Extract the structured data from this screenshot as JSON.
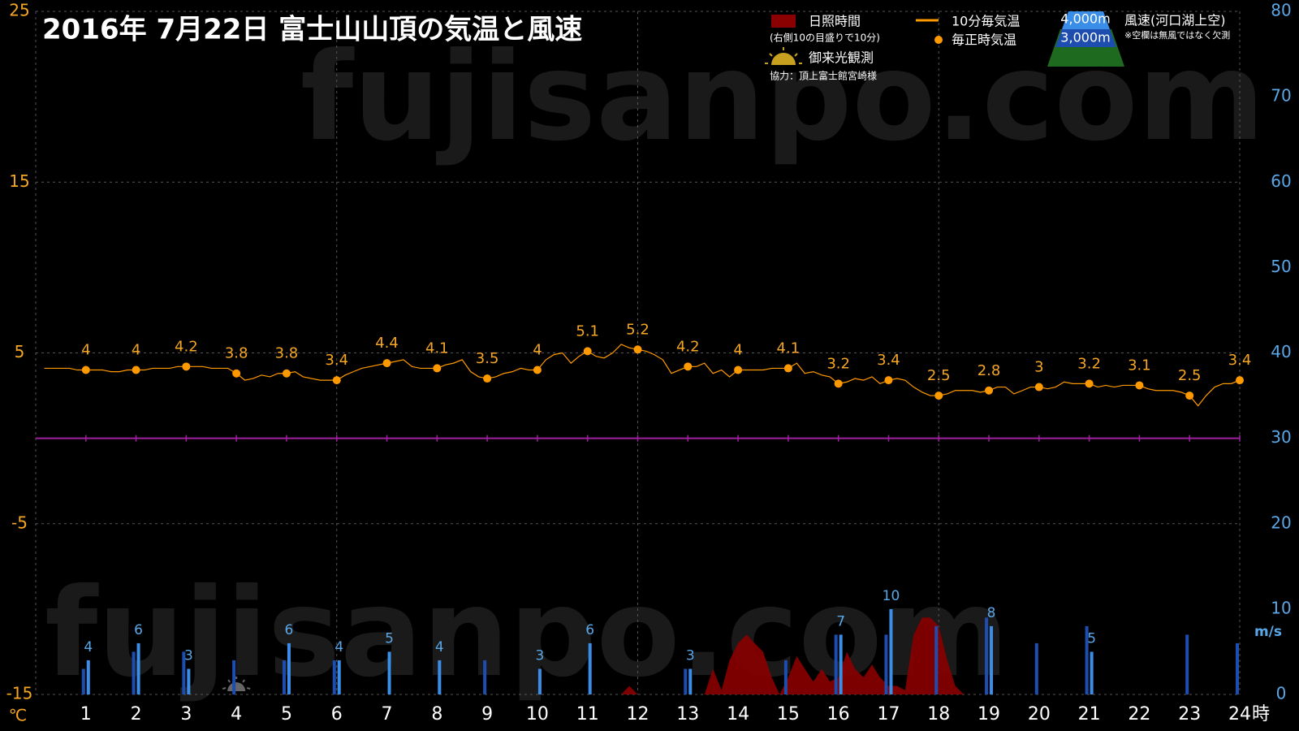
{
  "chart_data": {
    "type": "line",
    "title": "2016年  7月22日   富士山山頂の気温と風速",
    "xlim": [
      0,
      24
    ],
    "hours": [
      1,
      2,
      3,
      4,
      5,
      6,
      7,
      8,
      9,
      10,
      11,
      12,
      13,
      14,
      15,
      16,
      17,
      18,
      19,
      20,
      21,
      22,
      23,
      24
    ],
    "xlabel": "時",
    "ylim": [
      -15,
      25
    ],
    "yticks": [
      -15,
      -5,
      5,
      15,
      25
    ],
    "ylabel": "℃",
    "y2lim": [
      0,
      80
    ],
    "y2ticks": [
      0,
      10,
      20,
      30,
      40,
      50,
      60,
      70,
      80
    ],
    "y2label": "m/s",
    "grid": true,
    "zero_line_color": "#a020a0",
    "series": [
      {
        "name": "10分毎気温",
        "type": "line",
        "color": "#ff9900",
        "x": [
          0.17,
          0.33,
          0.5,
          0.67,
          0.83,
          1,
          1.17,
          1.33,
          1.5,
          1.67,
          1.83,
          2,
          2.17,
          2.33,
          2.5,
          2.67,
          2.83,
          3,
          3.17,
          3.33,
          3.5,
          3.67,
          3.83,
          4,
          4.17,
          4.33,
          4.5,
          4.67,
          4.83,
          5,
          5.17,
          5.33,
          5.5,
          5.67,
          5.83,
          6,
          6.17,
          6.33,
          6.5,
          6.67,
          6.83,
          7,
          7.17,
          7.33,
          7.5,
          7.67,
          7.83,
          8,
          8.17,
          8.33,
          8.5,
          8.67,
          8.83,
          9,
          9.17,
          9.33,
          9.5,
          9.67,
          9.83,
          10,
          10.17,
          10.33,
          10.5,
          10.67,
          10.83,
          11,
          11.17,
          11.33,
          11.5,
          11.67,
          11.83,
          12,
          12.17,
          12.33,
          12.5,
          12.67,
          12.83,
          13,
          13.17,
          13.33,
          13.5,
          13.67,
          13.83,
          14,
          14.17,
          14.33,
          14.5,
          14.67,
          14.83,
          15,
          15.17,
          15.33,
          15.5,
          15.67,
          15.83,
          16,
          16.17,
          16.33,
          16.5,
          16.67,
          16.83,
          17,
          17.17,
          17.33,
          17.5,
          17.67,
          17.83,
          18,
          18.17,
          18.33,
          18.5,
          18.67,
          18.83,
          19,
          19.17,
          19.33,
          19.5,
          19.67,
          19.83,
          20,
          20.17,
          20.33,
          20.5,
          20.67,
          20.83,
          21,
          21.17,
          21.33,
          21.5,
          21.67,
          21.83,
          22,
          22.17,
          22.33,
          22.5,
          22.67,
          22.83,
          23,
          23.17,
          23.33,
          23.5,
          23.67,
          23.83,
          24
        ],
        "values": [
          4.1,
          4.1,
          4.1,
          4.1,
          4.0,
          4.0,
          4.0,
          4.0,
          3.9,
          3.9,
          4.0,
          4.0,
          4.0,
          4.1,
          4.1,
          4.1,
          4.2,
          4.2,
          4.2,
          4.2,
          4.1,
          4.1,
          4.1,
          3.8,
          3.4,
          3.5,
          3.7,
          3.6,
          3.8,
          3.8,
          3.9,
          3.6,
          3.5,
          3.4,
          3.4,
          3.4,
          3.7,
          3.9,
          4.1,
          4.2,
          4.3,
          4.4,
          4.5,
          4.6,
          4.2,
          4.1,
          4.1,
          4.1,
          4.3,
          4.4,
          4.6,
          3.9,
          3.6,
          3.5,
          3.6,
          3.8,
          3.9,
          4.1,
          4.0,
          4.0,
          4.6,
          4.9,
          5.0,
          4.4,
          4.8,
          5.1,
          4.8,
          4.7,
          5.0,
          5.5,
          5.3,
          5.2,
          5.1,
          4.9,
          4.6,
          3.8,
          4.0,
          4.2,
          4.2,
          4.4,
          3.8,
          4.0,
          3.6,
          4.0,
          4.0,
          4.0,
          4.0,
          4.1,
          4.1,
          4.1,
          4.4,
          3.8,
          3.9,
          3.7,
          3.6,
          3.2,
          3.3,
          3.5,
          3.4,
          3.6,
          3.2,
          3.4,
          3.5,
          3.4,
          3.0,
          2.7,
          2.5,
          2.5,
          2.6,
          2.8,
          2.8,
          2.8,
          2.7,
          2.8,
          3.0,
          3.0,
          2.6,
          2.8,
          3.0,
          3.0,
          2.9,
          3.0,
          3.3,
          3.2,
          3.2,
          3.2,
          3.0,
          3.1,
          3.0,
          3.1,
          3.1,
          3.1,
          2.9,
          2.8,
          2.8,
          2.8,
          2.7,
          2.5,
          1.9,
          2.5,
          3.0,
          3.2,
          3.2,
          3.4
        ]
      },
      {
        "name": "毎正時気温",
        "type": "scatter",
        "color": "#ff9900",
        "values": [
          4,
          4,
          4.2,
          3.8,
          3.8,
          3.4,
          4.4,
          4.1,
          3.5,
          4,
          5.1,
          5.2,
          4.2,
          4,
          4.1,
          3.2,
          3.4,
          2.5,
          2.8,
          3,
          3.2,
          3.1,
          2.5,
          3.4
        ]
      },
      {
        "name": "日照時間",
        "type": "area",
        "axis": "y2",
        "color": "#8b0000",
        "x": [
          11.67,
          11.83,
          12,
          13.33,
          13.5,
          13.67,
          13.83,
          14,
          14.17,
          14.33,
          14.5,
          14.67,
          14.83,
          15,
          15.17,
          15.33,
          15.5,
          15.67,
          15.83,
          16,
          16.17,
          16.33,
          16.5,
          16.67,
          16.83,
          17,
          17.17,
          17.33,
          17.5,
          17.67,
          17.83,
          18,
          18.17,
          18.33,
          18.5
        ],
        "values": [
          0,
          1,
          0,
          0,
          3,
          0.5,
          4,
          6,
          7,
          6,
          5,
          2,
          0,
          2,
          4.5,
          3,
          1.5,
          3,
          1.5,
          2,
          5,
          3,
          2,
          3.5,
          2,
          1,
          1,
          0.5,
          7,
          9,
          9,
          8,
          4,
          1,
          0
        ]
      },
      {
        "name": "4,000m",
        "type": "bar",
        "axis": "y2",
        "color": "#1e4db0",
        "values": [
          3,
          5,
          5,
          4,
          4,
          4,
          null,
          null,
          4,
          null,
          null,
          null,
          3,
          null,
          4,
          7,
          7,
          8,
          9,
          6,
          8,
          null,
          7,
          6
        ]
      },
      {
        "name": "3,000m",
        "type": "bar",
        "axis": "y2",
        "color": "#3a8ee8",
        "values": [
          4,
          6,
          3,
          null,
          6,
          4,
          5,
          4,
          null,
          3,
          6,
          null,
          3,
          null,
          null,
          7,
          10,
          null,
          8,
          null,
          5,
          null,
          null,
          null
        ]
      }
    ],
    "sunshine_note": "(右側10の目盛りで10分)",
    "wind_title": "風速(河口湖上空)",
    "wind_note": "※空欄は無風ではなく欠測",
    "sunrise": {
      "label": "御来光観測",
      "x": 4
    },
    "credit": "協力：頂上富士館宮崎様",
    "watermark": "fujisanpo.com"
  }
}
